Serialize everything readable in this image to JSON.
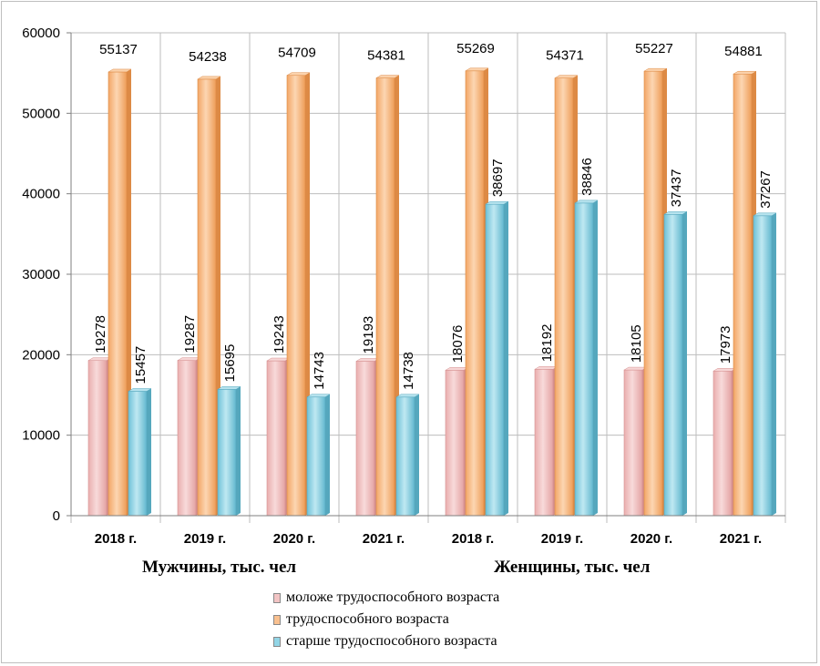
{
  "chart_data": {
    "type": "bar",
    "title": "",
    "xlabel": "",
    "ylabel": "",
    "ylim": [
      0,
      60000
    ],
    "yticks": [
      0,
      10000,
      20000,
      30000,
      40000,
      50000,
      60000
    ],
    "grid": true,
    "categories": [
      "2018 г.",
      "2019 г.",
      "2020 г.",
      "2021 г.",
      "2018 г.",
      "2019 г.",
      "2020 г.",
      "2021 г."
    ],
    "groups": [
      {
        "label": "Мужчины, тыс. чел",
        "categories": [
          0,
          1,
          2,
          3
        ]
      },
      {
        "label": "Женщины, тыс. чел",
        "categories": [
          4,
          5,
          6,
          7
        ]
      }
    ],
    "series": [
      {
        "name": "моложе трудоспособного возраста",
        "color": "#f2c4c4",
        "values": [
          19278,
          19287,
          19243,
          19193,
          18076,
          18192,
          18105,
          17973
        ]
      },
      {
        "name": "трудоспособного возраста",
        "color": "#f9c08f",
        "values": [
          55137,
          54238,
          54709,
          54381,
          55269,
          54371,
          55227,
          54881
        ]
      },
      {
        "name": "старше трудоспособного возраста",
        "color": "#92d5e6",
        "values": [
          15457,
          15695,
          14743,
          14738,
          38697,
          38846,
          37437,
          37267
        ]
      }
    ],
    "legend_position": "bottom"
  }
}
